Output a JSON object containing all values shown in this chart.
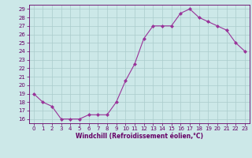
{
  "x": [
    0,
    1,
    2,
    3,
    4,
    5,
    6,
    7,
    8,
    9,
    10,
    11,
    12,
    13,
    14,
    15,
    16,
    17,
    18,
    19,
    20,
    21,
    22,
    23
  ],
  "y": [
    19,
    18,
    17.5,
    16,
    16,
    16,
    16.5,
    16.5,
    16.5,
    18,
    20.5,
    22.5,
    25.5,
    27,
    27,
    27,
    28.5,
    29,
    28,
    27.5,
    27,
    26.5,
    25,
    24
  ],
  "line_color": "#993399",
  "marker": "D",
  "marker_size": 2,
  "bg_color": "#cce8e8",
  "grid_color": "#aacccc",
  "xlabel": "Windchill (Refroidissement éolien,°C)",
  "xlim": [
    -0.5,
    23.5
  ],
  "ylim": [
    15.5,
    29.5
  ],
  "yticks": [
    16,
    17,
    18,
    19,
    20,
    21,
    22,
    23,
    24,
    25,
    26,
    27,
    28,
    29
  ],
  "xticks": [
    0,
    1,
    2,
    3,
    4,
    5,
    6,
    7,
    8,
    9,
    10,
    11,
    12,
    13,
    14,
    15,
    16,
    17,
    18,
    19,
    20,
    21,
    22,
    23
  ],
  "tick_color": "#660066",
  "label_color": "#660066",
  "spine_color": "#660066",
  "tick_fontsize": 5.0,
  "xlabel_fontsize": 5.5
}
